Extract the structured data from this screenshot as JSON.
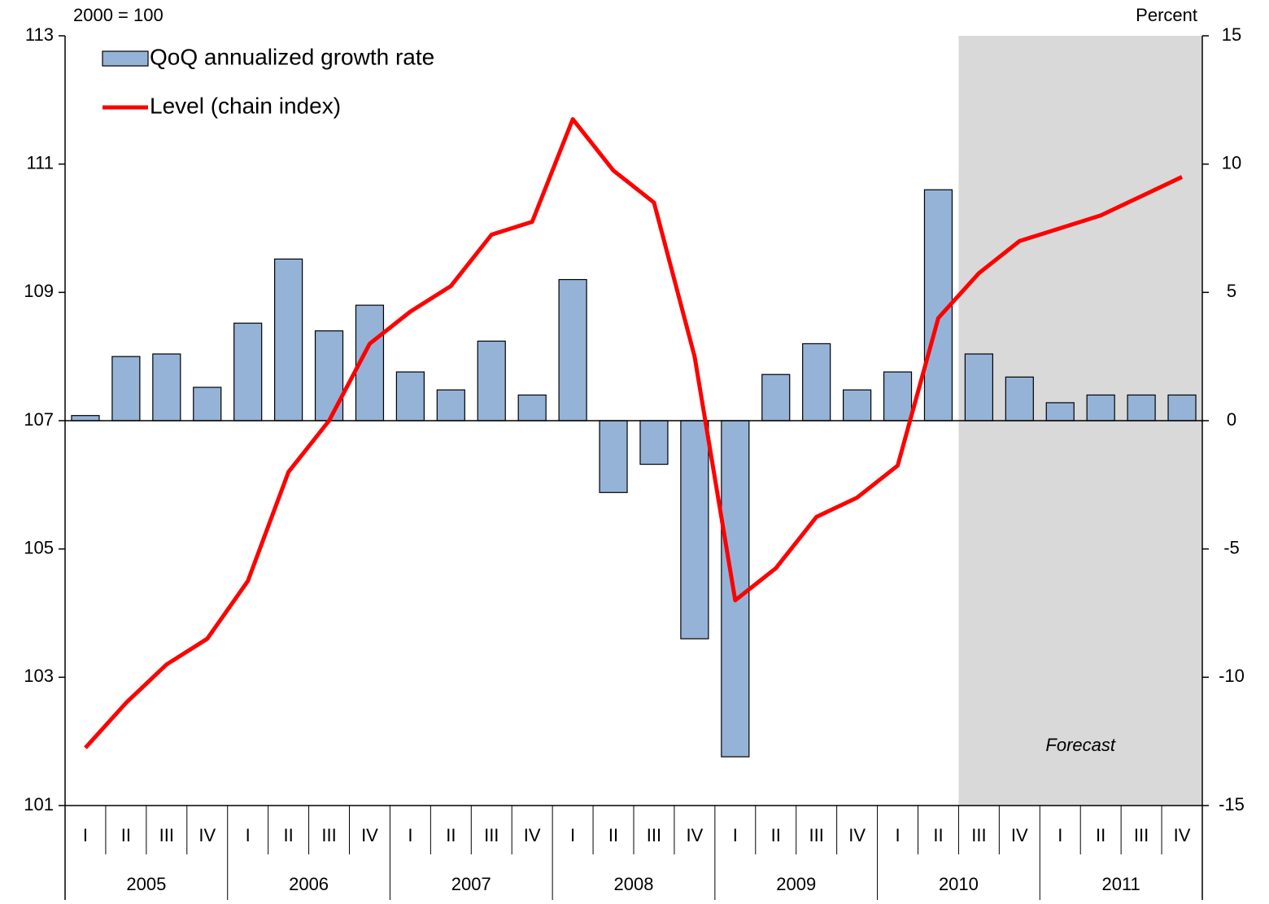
{
  "chart_data": {
    "type": "bar_line",
    "ylabel": "2000 = 100",
    "y2label": "Percent",
    "categories": [
      "I",
      "II",
      "III",
      "IV",
      "I",
      "II",
      "III",
      "IV",
      "I",
      "II",
      "III",
      "IV",
      "I",
      "II",
      "III",
      "IV",
      "I",
      "II",
      "III",
      "IV",
      "I",
      "II",
      "III",
      "IV",
      "I",
      "II",
      "III",
      "IV"
    ],
    "years": [
      "2005",
      "2006",
      "2007",
      "2008",
      "2009",
      "2010",
      "2011"
    ],
    "series": [
      {
        "name": "QoQ annualized growth rate",
        "type": "bar",
        "axis": "y2",
        "color": "#95b3d7",
        "values": [
          0.2,
          2.5,
          2.6,
          1.3,
          3.8,
          6.3,
          3.5,
          4.5,
          1.9,
          1.2,
          3.1,
          1.0,
          5.5,
          -2.8,
          -1.7,
          -8.5,
          -13.1,
          1.8,
          3.0,
          1.2,
          1.9,
          9.0,
          2.6,
          1.7,
          0.7,
          1.0,
          1.0,
          1.0
        ]
      },
      {
        "name": "Level (chain index)",
        "type": "line",
        "axis": "y",
        "color": "#ff0000",
        "values": [
          101.9,
          102.6,
          103.2,
          103.6,
          104.5,
          106.2,
          107.0,
          108.2,
          108.7,
          109.1,
          109.9,
          110.1,
          111.7,
          110.9,
          110.4,
          108.0,
          104.2,
          104.7,
          105.5,
          105.8,
          106.3,
          108.6,
          109.3,
          109.8,
          110.0,
          110.2,
          110.5,
          110.8
        ]
      }
    ],
    "ylim": [
      101,
      113
    ],
    "yticks": [
      101,
      103,
      105,
      107,
      109,
      111,
      113
    ],
    "y2lim": [
      -15,
      15
    ],
    "y2ticks": [
      -15,
      -10,
      -5,
      0,
      5,
      10,
      15
    ],
    "shade": {
      "label": "Forecast",
      "start_category": 22,
      "color": "#d9d9d9"
    },
    "legend": "top-left"
  }
}
